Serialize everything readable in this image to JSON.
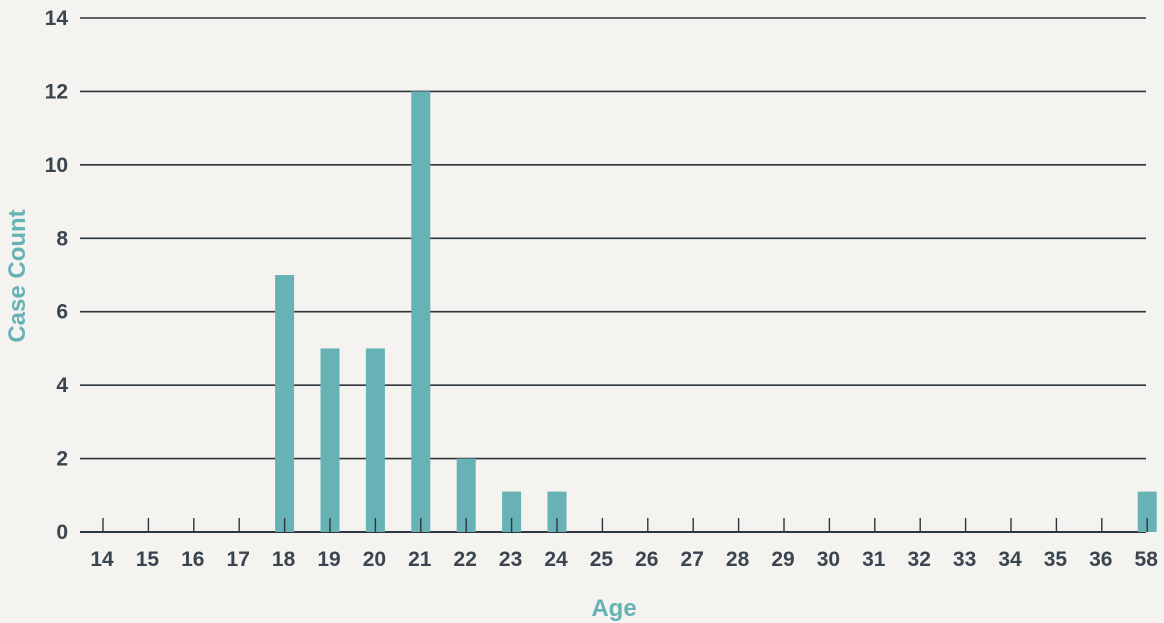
{
  "colors": {
    "bar": "#66b2b5",
    "axis_title": "#66b2b5",
    "tick_text": "#3a4550",
    "grid": "#2e363d",
    "background": "#f4f3ef"
  },
  "chart_data": {
    "type": "bar",
    "title": "",
    "xlabel": "Age",
    "ylabel": "Case Count",
    "categories": [
      "14",
      "15",
      "16",
      "17",
      "18",
      "19",
      "20",
      "21",
      "22",
      "23",
      "24",
      "25",
      "26",
      "27",
      "28",
      "29",
      "30",
      "31",
      "32",
      "33",
      "34",
      "35",
      "36",
      "58"
    ],
    "values": [
      0,
      0,
      0,
      0,
      7,
      5,
      5,
      12,
      2,
      1.1,
      1.1,
      0,
      0,
      0,
      0,
      0,
      0,
      0,
      0,
      0,
      0,
      0,
      0,
      1.1
    ],
    "ylim": [
      0,
      14
    ],
    "yticks": [
      "0",
      "2",
      "4",
      "6",
      "8",
      "10",
      "12",
      "14"
    ],
    "grid": true,
    "legend": "none"
  }
}
